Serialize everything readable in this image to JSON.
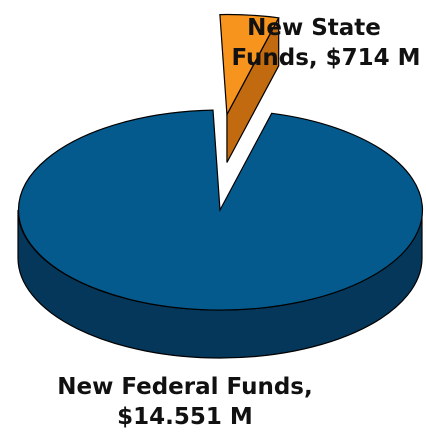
{
  "chart_data": {
    "type": "pie",
    "title": "",
    "style": "3d-exploded",
    "slices": [
      {
        "name": "New Federal Funds",
        "value": 14551,
        "unit": "M",
        "color": "#045a8d",
        "side_color": "#04375a",
        "label_line1": "New Federal Funds,",
        "label_line2": "$14.551 M"
      },
      {
        "name": "New State Funds",
        "value": 714,
        "unit": "M",
        "color": "#f7941e",
        "side_color": "#c26a10",
        "label_line1": "New State",
        "label_line2": "Funds, $714 M"
      }
    ]
  }
}
